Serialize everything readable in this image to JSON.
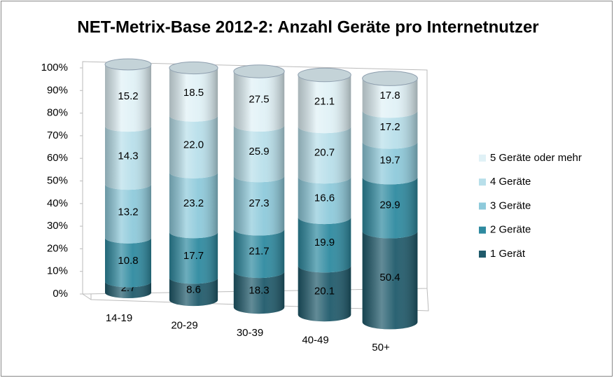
{
  "chart_data": {
    "type": "bar",
    "stacking": "percent",
    "title": "NET-Metrix-Base 2012-2: Anzahl Geräte pro Internetnutzer",
    "categories": [
      "14-19",
      "20-29",
      "30-39",
      "40-49",
      "50+"
    ],
    "series": [
      {
        "name": "1 Gerät",
        "color": "#1f5a6b",
        "values": [
          2.7,
          8.6,
          18.3,
          20.1,
          50.4
        ],
        "value_labels": [
          "2.7",
          "8.6",
          "18.3",
          "20.1",
          "50.4"
        ]
      },
      {
        "name": "2 Geräte",
        "color": "#2e8aa0",
        "values": [
          10.8,
          17.7,
          21.7,
          19.9,
          29.9
        ],
        "value_labels": [
          "10.8",
          "17.7",
          "21.7",
          "19.9",
          "29.9"
        ]
      },
      {
        "name": "3 Geräte",
        "color": "#8ecadb",
        "values": [
          13.2,
          23.2,
          27.3,
          16.6,
          19.7
        ],
        "value_labels": [
          "13.2",
          "23.2",
          "27.3",
          "16.6",
          "19.7"
        ]
      },
      {
        "name": "4 Geräte",
        "color": "#b8dfea",
        "values": [
          14.3,
          22.0,
          25.9,
          20.7,
          17.2
        ],
        "value_labels": [
          "14.3",
          "22.0",
          "25.9",
          "20.7",
          "17.2"
        ]
      },
      {
        "name": "5 Geräte oder mehr",
        "color": "#e0f1f6",
        "values": [
          15.2,
          18.5,
          27.5,
          21.1,
          17.8
        ],
        "value_labels": [
          "15.2",
          "18.5",
          "27.5",
          "21.1",
          "17.8"
        ]
      }
    ],
    "ylim": [
      0,
      100
    ],
    "yticks": [
      {
        "value": 0,
        "label": "0%"
      },
      {
        "value": 10,
        "label": "10%"
      },
      {
        "value": 20,
        "label": "20%"
      },
      {
        "value": 30,
        "label": "30%"
      },
      {
        "value": 40,
        "label": "40%"
      },
      {
        "value": 50,
        "label": "50%"
      },
      {
        "value": 60,
        "label": "60%"
      },
      {
        "value": 70,
        "label": "70%"
      },
      {
        "value": 80,
        "label": "80%"
      },
      {
        "value": 90,
        "label": "90%"
      },
      {
        "value": 100,
        "label": "100%"
      }
    ],
    "grid": false,
    "legend": "right"
  }
}
